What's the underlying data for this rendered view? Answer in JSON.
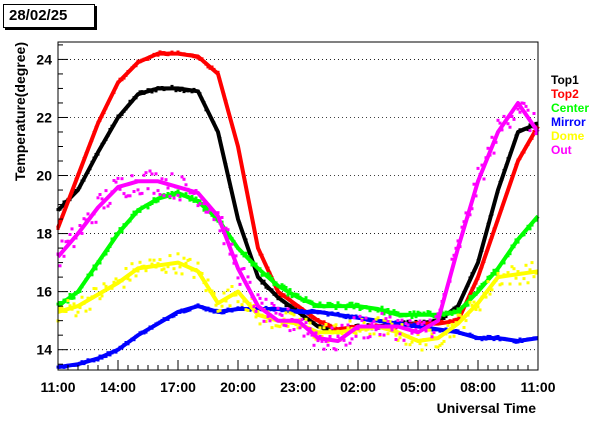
{
  "date_label": "28/02/25",
  "chart_data": {
    "type": "scatter",
    "title": "",
    "xlabel": "Universal Time",
    "ylabel": "Temperature(degree)",
    "x_unit": "hours since 11:00 (day 1)",
    "xlim": [
      0,
      24
    ],
    "ylim": [
      13.3,
      24.6
    ],
    "x_ticks": [
      "11:00",
      "14:00",
      "17:00",
      "20:00",
      "23:00",
      "02:00",
      "05:00",
      "08:00",
      "11:00"
    ],
    "y_ticks": [
      "14",
      "16",
      "18",
      "20",
      "22",
      "24"
    ],
    "y_tick_values": [
      14,
      16,
      18,
      20,
      22,
      24
    ],
    "grid": "horizontal dotted",
    "legend_position": "right",
    "series": [
      {
        "name": "Top1",
        "color": "#000000",
        "points": [
          [
            0,
            18.8
          ],
          [
            1,
            19.5
          ],
          [
            2,
            20.8
          ],
          [
            3,
            22.0
          ],
          [
            4,
            22.8
          ],
          [
            5,
            23.0
          ],
          [
            6,
            23.0
          ],
          [
            7,
            22.9
          ],
          [
            8,
            21.5
          ],
          [
            9,
            18.5
          ],
          [
            10,
            16.5
          ],
          [
            11,
            15.8
          ],
          [
            12,
            15.3
          ],
          [
            13,
            14.8
          ],
          [
            14,
            14.6
          ],
          [
            15,
            14.8
          ],
          [
            16,
            14.8
          ],
          [
            17,
            14.9
          ],
          [
            18,
            14.9
          ],
          [
            19,
            15.0
          ],
          [
            20,
            15.5
          ],
          [
            21,
            17.0
          ],
          [
            22,
            19.5
          ],
          [
            23,
            21.5
          ],
          [
            24,
            21.8
          ]
        ]
      },
      {
        "name": "Top2",
        "color": "#ff0000",
        "points": [
          [
            0,
            18.2
          ],
          [
            1,
            20.0
          ],
          [
            2,
            21.8
          ],
          [
            3,
            23.2
          ],
          [
            4,
            23.9
          ],
          [
            5,
            24.2
          ],
          [
            6,
            24.2
          ],
          [
            7,
            24.1
          ],
          [
            8,
            23.5
          ],
          [
            9,
            21.0
          ],
          [
            10,
            17.5
          ],
          [
            11,
            16.0
          ],
          [
            12,
            15.5
          ],
          [
            13,
            15.0
          ],
          [
            14,
            14.7
          ],
          [
            15,
            14.8
          ],
          [
            16,
            14.8
          ],
          [
            17,
            14.8
          ],
          [
            18,
            14.9
          ],
          [
            19,
            14.9
          ],
          [
            20,
            15.0
          ],
          [
            21,
            16.5
          ],
          [
            22,
            18.5
          ],
          [
            23,
            20.5
          ],
          [
            24,
            21.7
          ]
        ]
      },
      {
        "name": "Center",
        "color": "#00ff00",
        "points": [
          [
            0,
            15.5
          ],
          [
            1,
            16.0
          ],
          [
            2,
            17.0
          ],
          [
            3,
            18.0
          ],
          [
            4,
            18.8
          ],
          [
            5,
            19.2
          ],
          [
            6,
            19.4
          ],
          [
            7,
            19.1
          ],
          [
            8,
            18.5
          ],
          [
            9,
            17.5
          ],
          [
            10,
            16.8
          ],
          [
            11,
            16.2
          ],
          [
            12,
            15.8
          ],
          [
            13,
            15.5
          ],
          [
            14,
            15.5
          ],
          [
            15,
            15.5
          ],
          [
            16,
            15.4
          ],
          [
            17,
            15.2
          ],
          [
            18,
            15.2
          ],
          [
            19,
            15.2
          ],
          [
            20,
            15.3
          ],
          [
            21,
            16.0
          ],
          [
            22,
            16.8
          ],
          [
            23,
            17.8
          ],
          [
            24,
            18.6
          ]
        ]
      },
      {
        "name": "Mirror",
        "color": "#0000ff",
        "points": [
          [
            0,
            13.4
          ],
          [
            1,
            13.5
          ],
          [
            2,
            13.7
          ],
          [
            3,
            14.0
          ],
          [
            4,
            14.5
          ],
          [
            5,
            14.9
          ],
          [
            6,
            15.3
          ],
          [
            7,
            15.5
          ],
          [
            8,
            15.3
          ],
          [
            9,
            15.4
          ],
          [
            10,
            15.4
          ],
          [
            11,
            15.4
          ],
          [
            12,
            15.3
          ],
          [
            13,
            15.3
          ],
          [
            14,
            15.2
          ],
          [
            15,
            15.1
          ],
          [
            16,
            15.0
          ],
          [
            17,
            14.9
          ],
          [
            18,
            14.8
          ],
          [
            19,
            14.7
          ],
          [
            20,
            14.6
          ],
          [
            21,
            14.4
          ],
          [
            22,
            14.4
          ],
          [
            23,
            14.3
          ],
          [
            24,
            14.4
          ]
        ]
      },
      {
        "name": "Dome",
        "color": "#ffff00",
        "points": [
          [
            0,
            15.3
          ],
          [
            1,
            15.5
          ],
          [
            2,
            15.9
          ],
          [
            3,
            16.3
          ],
          [
            4,
            16.8
          ],
          [
            5,
            16.9
          ],
          [
            6,
            17.0
          ],
          [
            7,
            16.7
          ],
          [
            8,
            15.6
          ],
          [
            9,
            16.0
          ],
          [
            10,
            15.2
          ],
          [
            11,
            15.0
          ],
          [
            12,
            14.9
          ],
          [
            13,
            14.6
          ],
          [
            14,
            14.6
          ],
          [
            15,
            14.7
          ],
          [
            16,
            14.8
          ],
          [
            17,
            14.6
          ],
          [
            18,
            14.3
          ],
          [
            19,
            14.4
          ],
          [
            20,
            14.9
          ],
          [
            21,
            15.6
          ],
          [
            22,
            16.5
          ],
          [
            23,
            16.6
          ],
          [
            24,
            16.7
          ]
        ]
      },
      {
        "name": "Out",
        "color": "#ff00ff",
        "points": [
          [
            0,
            17.2
          ],
          [
            1,
            18.0
          ],
          [
            2,
            18.9
          ],
          [
            3,
            19.6
          ],
          [
            4,
            19.8
          ],
          [
            5,
            19.8
          ],
          [
            6,
            19.6
          ],
          [
            7,
            19.4
          ],
          [
            8,
            18.6
          ],
          [
            9,
            16.8
          ],
          [
            10,
            15.5
          ],
          [
            11,
            15.0
          ],
          [
            12,
            15.0
          ],
          [
            13,
            14.4
          ],
          [
            14,
            14.3
          ],
          [
            15,
            14.8
          ],
          [
            16,
            14.8
          ],
          [
            17,
            14.8
          ],
          [
            18,
            14.6
          ],
          [
            19,
            15.0
          ],
          [
            20,
            17.5
          ],
          [
            21,
            19.8
          ],
          [
            22,
            21.5
          ],
          [
            23,
            22.5
          ],
          [
            24,
            21.5
          ]
        ]
      }
    ]
  }
}
